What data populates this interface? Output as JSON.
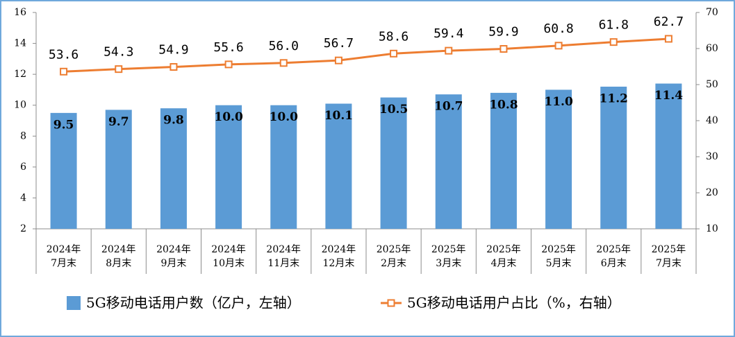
{
  "chart_data": {
    "type": "bar-line",
    "categories": [
      "2024年\n7月末",
      "2024年\n8月末",
      "2024年\n9月末",
      "2024年\n10月末",
      "2024年\n11月末",
      "2024年\n12月末",
      "2025年\n2月末",
      "2025年\n3月末",
      "2025年\n4月末",
      "2025年\n5月末",
      "2025年\n6月末",
      "2025年\n7月末"
    ],
    "series": [
      {
        "name": "5G移动电话用户数（亿户，左轴）",
        "type": "bar",
        "color": "#5b9bd5",
        "values": [
          9.5,
          9.7,
          9.8,
          10.0,
          10.0,
          10.1,
          10.5,
          10.7,
          10.8,
          11.0,
          11.2,
          11.4
        ],
        "value_labels": [
          "9.5",
          "9.7",
          "9.8",
          "10.0",
          "10.0",
          "10.1",
          "10.5",
          "10.7",
          "10.8",
          "11.0",
          "11.2",
          "11.4"
        ]
      },
      {
        "name": "5G移动电话用户占比（%，右轴）",
        "type": "line",
        "axis": "y2",
        "color": "#ed7d31",
        "values": [
          53.6,
          54.3,
          54.9,
          55.6,
          56.0,
          56.7,
          58.6,
          59.4,
          59.9,
          60.8,
          61.8,
          62.7
        ],
        "value_labels": [
          "53.6",
          "54.3",
          "54.9",
          "55.6",
          "56.0",
          "56.7",
          "58.6",
          "59.4",
          "59.9",
          "60.8",
          "61.8",
          "62.7"
        ]
      }
    ],
    "ylim": [
      2,
      16
    ],
    "yticks": [
      2,
      4,
      6,
      8,
      10,
      12,
      14,
      16
    ],
    "y2lim": [
      10,
      70
    ],
    "y2ticks": [
      10,
      20,
      30,
      40,
      50,
      60,
      70
    ],
    "legend": "bottom"
  }
}
